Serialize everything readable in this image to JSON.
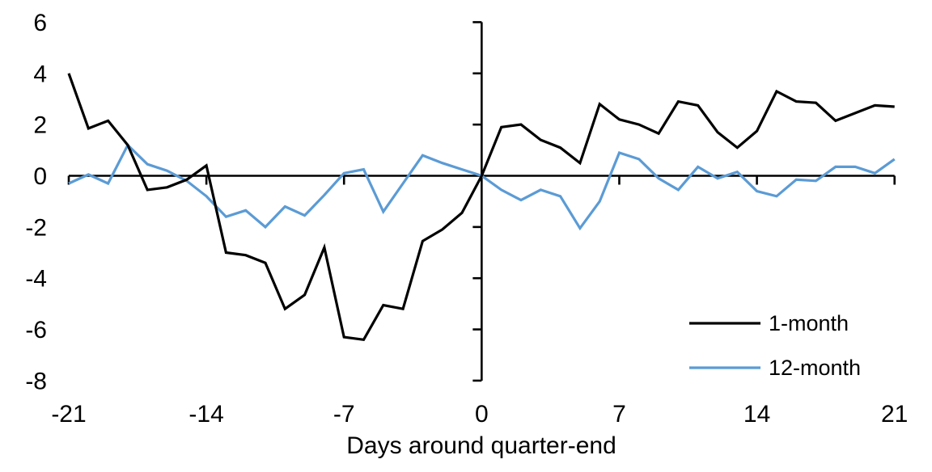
{
  "chart_data": {
    "type": "line",
    "title": "",
    "xlabel": "Days around quarter-end",
    "ylabel": "",
    "x": [
      -21,
      -20,
      -19,
      -18,
      -17,
      -16,
      -15,
      -14,
      -13,
      -12,
      -11,
      -10,
      -9,
      -8,
      -7,
      -6,
      -5,
      -4,
      -3,
      -2,
      -1,
      0,
      1,
      2,
      3,
      4,
      5,
      6,
      7,
      8,
      9,
      10,
      11,
      12,
      13,
      14,
      15,
      16,
      17,
      18,
      19,
      20,
      21
    ],
    "series": [
      {
        "name": "1-month",
        "color": "#000000",
        "values": [
          4.0,
          1.85,
          2.15,
          1.2,
          -0.55,
          -0.45,
          -0.15,
          0.4,
          -3.0,
          -3.1,
          -3.4,
          -5.2,
          -4.65,
          -2.8,
          -6.3,
          -6.4,
          -5.05,
          -5.2,
          -2.55,
          -2.1,
          -1.45,
          0.0,
          1.9,
          2.0,
          1.4,
          1.1,
          0.5,
          2.8,
          2.2,
          2.0,
          1.65,
          2.9,
          2.75,
          1.7,
          1.1,
          1.75,
          3.3,
          2.9,
          2.85,
          2.15,
          2.45,
          2.75,
          2.7
        ]
      },
      {
        "name": "12-month",
        "color": "#5B9BD5",
        "values": [
          -0.3,
          0.05,
          -0.3,
          1.2,
          0.45,
          0.2,
          -0.2,
          -0.8,
          -1.6,
          -1.35,
          -2.0,
          -1.2,
          -1.55,
          -0.75,
          0.1,
          0.25,
          -1.4,
          -0.3,
          0.8,
          0.5,
          0.25,
          0.0,
          -0.55,
          -0.95,
          -0.55,
          -0.8,
          -2.05,
          -1.0,
          0.9,
          0.65,
          -0.1,
          -0.55,
          0.35,
          -0.1,
          0.15,
          -0.6,
          -0.8,
          -0.15,
          -0.2,
          0.35,
          0.35,
          0.1,
          0.65
        ]
      }
    ],
    "xlim": [
      -21,
      21
    ],
    "ylim": [
      -8,
      6
    ],
    "xticks": [
      -21,
      -14,
      -7,
      0,
      7,
      14,
      21
    ],
    "yticks": [
      6,
      4,
      2,
      0,
      -2,
      -4,
      -6,
      -8
    ],
    "grid": false,
    "legend_position": "lower-right",
    "axis_color": "#000000"
  },
  "legend": {
    "items": [
      {
        "label": "1-month",
        "color": "#000000"
      },
      {
        "label": "12-month",
        "color": "#5B9BD5"
      }
    ]
  },
  "axis": {
    "x_title": "Days around quarter-end"
  }
}
